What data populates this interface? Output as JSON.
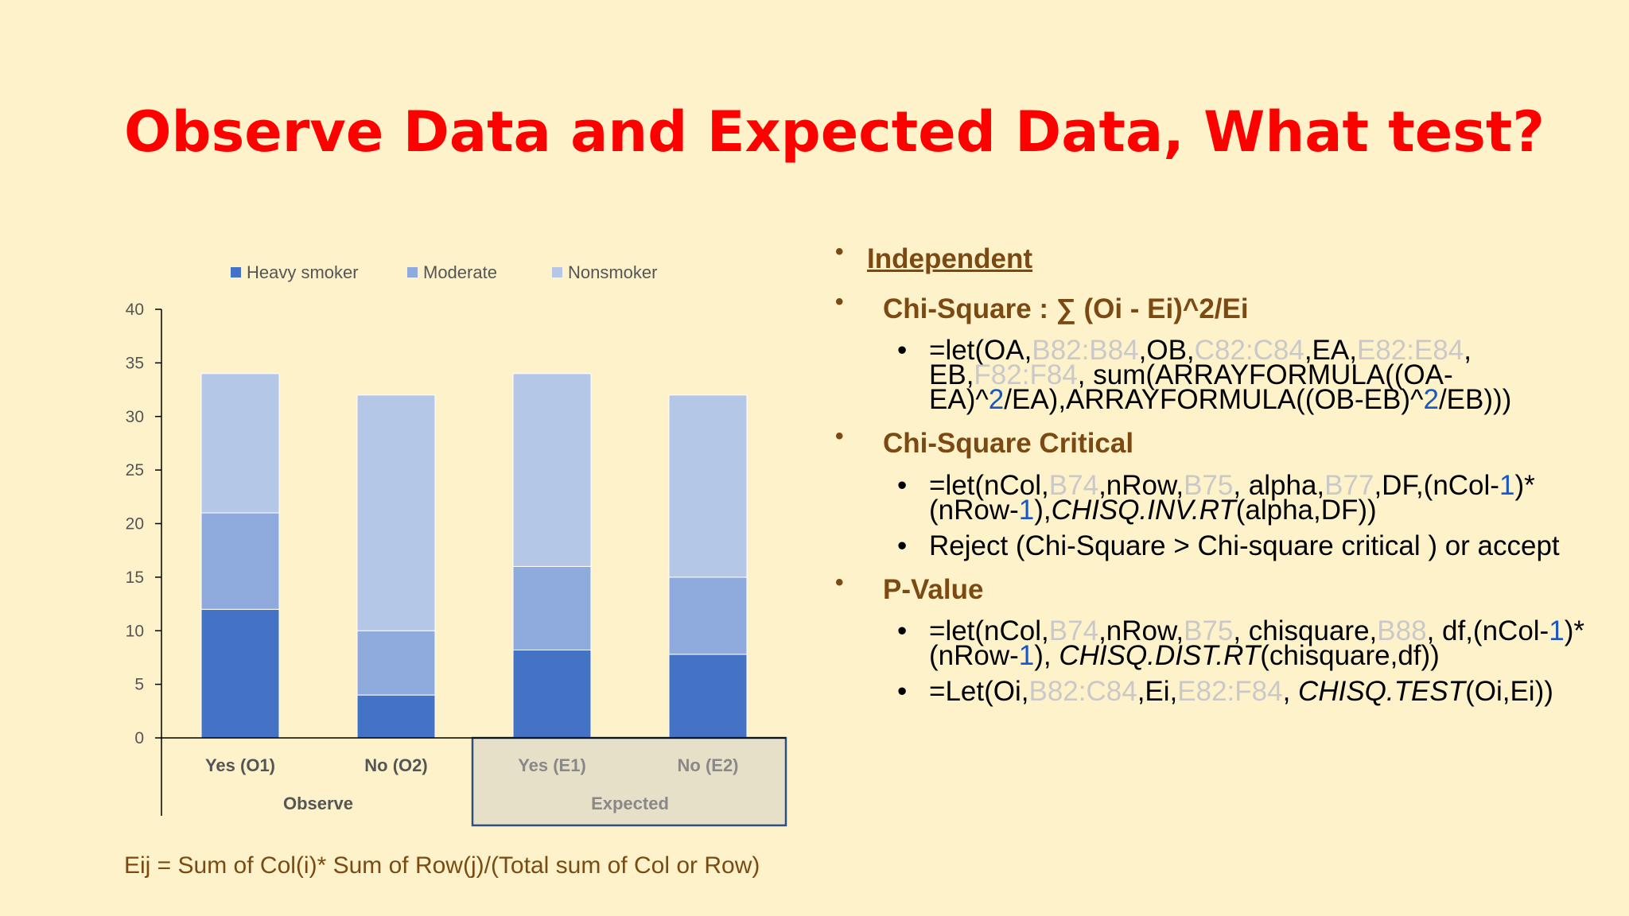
{
  "title": "Observe Data and Expected Data, What test?",
  "footer": "Eij = Sum of Col(i)* Sum of Row(j)/(Total sum of Col or Row)",
  "colors": {
    "heavy": "#4472c4",
    "moderate": "#8faadc",
    "nonsmoker": "#b4c7e7",
    "title": "#ff0000",
    "brown": "#7b4a12",
    "group_box": "#e7e0c9",
    "group_border": "#2f4f7f"
  },
  "chart_data": {
    "type": "bar",
    "stacked": true,
    "categories": [
      "Yes (O1)",
      "No (O2)",
      "Yes (E1)",
      "No (E2)"
    ],
    "groups": [
      {
        "label": "Observe",
        "categories": [
          "Yes (O1)",
          "No (O2)"
        ]
      },
      {
        "label": "Expected",
        "categories": [
          "Yes (E1)",
          "No (E2)"
        ]
      }
    ],
    "series": [
      {
        "name": "Heavy smoker",
        "values": [
          12,
          4,
          8.2,
          7.8
        ]
      },
      {
        "name": "Moderate",
        "values": [
          9,
          6,
          7.8,
          7.2
        ]
      },
      {
        "name": "Nonsmoker",
        "values": [
          13,
          22,
          18,
          17
        ]
      }
    ],
    "ylim": [
      0,
      40
    ],
    "yticks": [
      0,
      5,
      10,
      15,
      20,
      25,
      30,
      35,
      40
    ],
    "legend_position": "top",
    "grid": false
  },
  "bullets": {
    "independent": "Independent",
    "chi_square": {
      "head": "Chi-Square : ∑ (Oi - Ei)^2/Ei",
      "formula": [
        [
          "=let(OA,",
          ""
        ],
        [
          "B82:B84",
          "g"
        ],
        [
          ",OB,",
          ""
        ],
        [
          "C82:C84",
          "g"
        ],
        [
          ",EA,",
          ""
        ],
        [
          "E82:E84",
          "g"
        ],
        [
          ", EB,",
          ""
        ],
        [
          "F82:F84",
          "g"
        ],
        [
          ", sum(ARRAYFORMULA((OA-EA)^",
          ""
        ],
        [
          "2",
          "b"
        ],
        [
          "/EA),ARRAYFORMULA((OB-EB)^",
          ""
        ],
        [
          "2",
          "b"
        ],
        [
          "/EB)))",
          ""
        ]
      ]
    },
    "chi_square_critical": {
      "head": "Chi-Square Critical",
      "formula": [
        [
          "=let(nCol,",
          ""
        ],
        [
          "B74",
          "g"
        ],
        [
          ",nRow,",
          ""
        ],
        [
          "B75",
          "g"
        ],
        [
          ", alpha,",
          ""
        ],
        [
          "B77",
          "g"
        ],
        [
          ",DF,(nCol-",
          ""
        ],
        [
          "1",
          "b"
        ],
        [
          ")*(nRow-",
          ""
        ],
        [
          "1",
          "b"
        ],
        [
          "),",
          ""
        ],
        [
          "CHISQ.INV.RT",
          "i"
        ],
        [
          "(alpha,DF))",
          ""
        ]
      ],
      "decision": "Reject (Chi-Square > Chi-square critical ) or accept"
    },
    "p_value": {
      "head": "P-Value",
      "formula1": [
        [
          "=let(nCol,",
          ""
        ],
        [
          "B74",
          "g"
        ],
        [
          ",nRow,",
          ""
        ],
        [
          "B75",
          "g"
        ],
        [
          ", chisquare,",
          ""
        ],
        [
          "B88",
          "g"
        ],
        [
          ", df,(nCol-",
          ""
        ],
        [
          "1",
          "b"
        ],
        [
          ")*(nRow-",
          ""
        ],
        [
          "1",
          "b"
        ],
        [
          "), ",
          ""
        ],
        [
          "CHISQ.DIST.RT",
          "i"
        ],
        [
          "(chisquare,df))",
          ""
        ]
      ],
      "formula2": [
        [
          "=Let(Oi,",
          ""
        ],
        [
          "B82:C84",
          "g"
        ],
        [
          ",Ei,",
          ""
        ],
        [
          "E82:F84",
          "g"
        ],
        [
          ", ",
          ""
        ],
        [
          "CHISQ.TEST",
          "i"
        ],
        [
          "(Oi,Ei))",
          ""
        ]
      ]
    }
  }
}
